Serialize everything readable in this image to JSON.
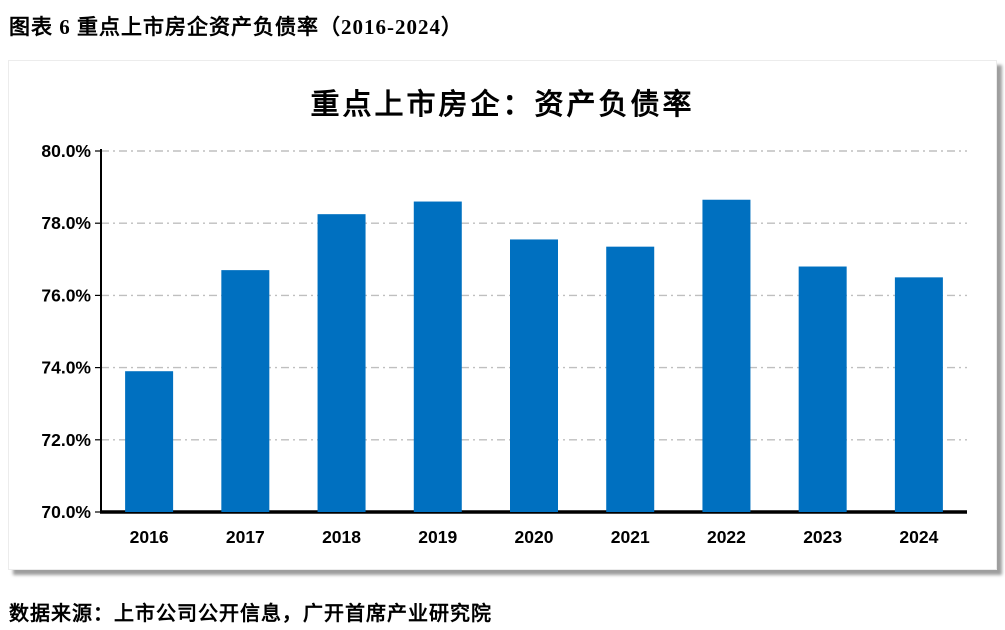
{
  "header": {
    "title": "图表 6 重点上市房企资产负债率（2016-2024）"
  },
  "chart_data": {
    "type": "bar",
    "title": "重点上市房企：资产负债率",
    "categories": [
      "2016",
      "2017",
      "2018",
      "2019",
      "2020",
      "2021",
      "2022",
      "2023",
      "2024"
    ],
    "values": [
      73.9,
      76.7,
      78.25,
      78.6,
      77.55,
      77.35,
      78.65,
      76.8,
      76.5
    ],
    "unit": "%",
    "xlabel": "",
    "ylabel": "",
    "ylim": [
      70,
      80
    ],
    "ytick_step": 2,
    "ytick_labels": [
      "70.0%",
      "72.0%",
      "74.0%",
      "76.0%",
      "78.0%",
      "80.0%"
    ],
    "grid": "horizontal-dash-dot",
    "legend": "none",
    "bar_color": "#0070C0",
    "gridline_color": "#BFBFBF",
    "axis_color": "#000000",
    "label_color": "#000000"
  },
  "source": {
    "text": "数据来源：上市公司公开信息，广开首席产业研究院"
  }
}
